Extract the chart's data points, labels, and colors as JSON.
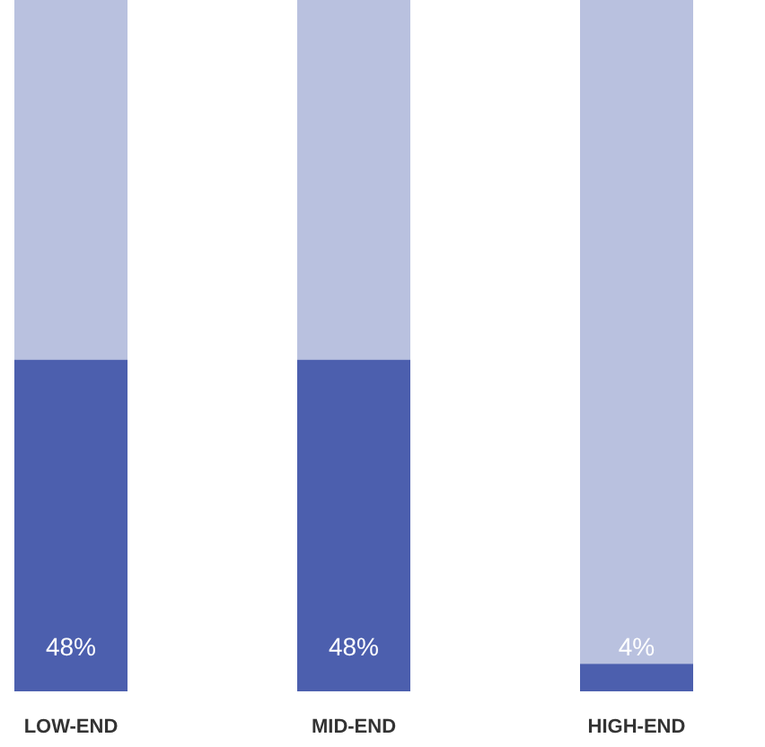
{
  "chart_data": {
    "type": "bar",
    "stacked": true,
    "categories": [
      "LOW-END",
      "MID-END",
      "HIGH-END"
    ],
    "ylim": [
      0,
      100
    ],
    "series": [
      {
        "color": "#4c5fae",
        "values": [
          48,
          48,
          4
        ],
        "value_labels": [
          "48%",
          "48%",
          "4%"
        ]
      },
      {
        "color": "#b9c1df",
        "values": [
          52,
          52,
          96
        ]
      }
    ]
  }
}
